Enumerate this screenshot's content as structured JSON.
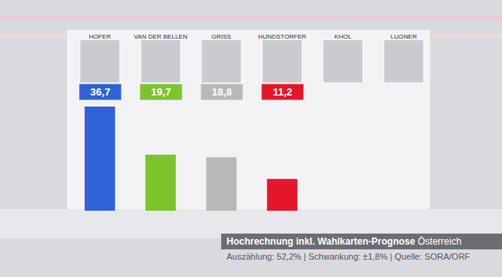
{
  "chart_data": {
    "type": "bar",
    "title": "Hochrechnung inkl. Wahlkarten-Prognose",
    "subtitle": "Österreich",
    "annotations": [
      "Auszählung: 52,2% | Schwankung: ±1,8% | Quelle: SORA/ORF"
    ],
    "categories": [
      "HOFER",
      "VAN DER BELLEN",
      "GRISS",
      "HUNDSTORFER",
      "KHOL",
      "LUGNER"
    ],
    "values": [
      36.7,
      19.7,
      18.8,
      11.2,
      null,
      null
    ],
    "value_labels": [
      "36,7",
      "19,7",
      "18,8",
      "11,2",
      null,
      null
    ],
    "colors": [
      "#2f62d6",
      "#7cc42c",
      "#b8b8b8",
      "#e3162c",
      null,
      null
    ],
    "data_labels": true,
    "tick_labels": "x",
    "grid": false
  }
}
